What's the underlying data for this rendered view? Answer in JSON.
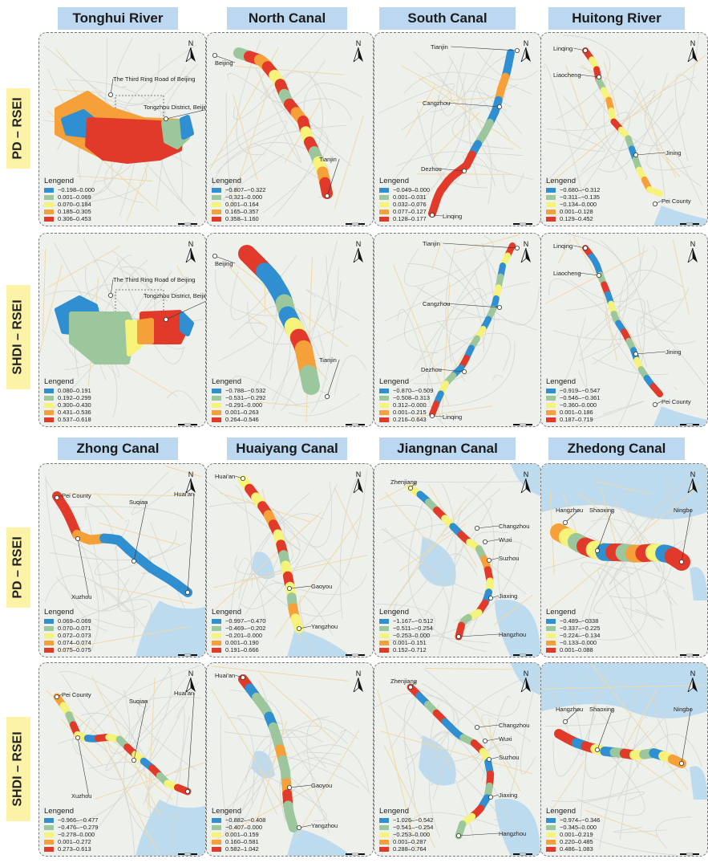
{
  "row_labels": [
    "PD – RSEI",
    "SHDI – RSEI",
    "PD – RSEI",
    "SHDI – RSEI"
  ],
  "legend_title": "Lengend",
  "north_label": "N",
  "colors": [
    "#2f8fd0",
    "#9cc79d",
    "#f5f37a",
    "#f6a03a",
    "#e23a2a"
  ],
  "titles": [
    "Tonghui River",
    "North Canal",
    "South Canal",
    "Huitong River",
    "Zhong Canal",
    "Huaiyang Canal",
    "Jiangnan Canal",
    "Zhedong Canal"
  ],
  "panels": [
    {
      "canal": "Tonghui River",
      "index": "PD – RSEI",
      "legend": [
        "−0.198–0.000",
        "0.001–0.069",
        "0.070–0.184",
        "0.185–0.305",
        "0.306–0.453"
      ],
      "labels": [
        "The Third Ring Road of Beijing",
        "Tongzhou District, Beijing"
      ]
    },
    {
      "canal": "North Canal",
      "index": "PD – RSEI",
      "legend": [
        "−0.807–−0.322",
        "−0.321–0.000",
        "0.001–0.164",
        "0.165–0.357",
        "0.358–1.160"
      ],
      "labels": [
        "Beijing",
        "Tianjin"
      ]
    },
    {
      "canal": "South Canal",
      "index": "PD – RSEI",
      "legend": [
        "−0.049–0.000",
        "0.001–0.031",
        "0.032–0.076",
        "0.077–0.127",
        "0.128–0.177"
      ],
      "labels": [
        "Tianjin",
        "Cangzhou",
        "Dezhou",
        "Linqing"
      ]
    },
    {
      "canal": "Huitong River",
      "index": "PD – RSEI",
      "legend": [
        "−0.680–−0.312",
        "−0.311–−0.135",
        "−0.134–0.000",
        "0.001–0.128",
        "0.129–0.452"
      ],
      "labels": [
        "Linqing",
        "Liaocheng",
        "Jining",
        "Pei County"
      ]
    },
    {
      "canal": "Tonghui River",
      "index": "SHDI – RSEI",
      "legend": [
        "0.080–0.191",
        "0.192–0.299",
        "0.300–0.430",
        "0.431–0.536",
        "0.537–0.618"
      ],
      "labels": [
        "The Third Ring Road of Beijing",
        "Tongzhou District, Beijing"
      ]
    },
    {
      "canal": "North Canal",
      "index": "SHDI – RSEI",
      "legend": [
        "−0.788–−0.532",
        "−0.531–−0.292",
        "−0.291–0.000",
        "0.001–0.263",
        "0.264–0.546"
      ],
      "labels": [
        "Beijing",
        "Tianjin"
      ]
    },
    {
      "canal": "South Canal",
      "index": "SHDI – RSEI",
      "legend": [
        "−0.870–−0.509",
        "−0.508–0.313",
        "0.312–0.000",
        "0.001–0.215",
        "0.216–0.643"
      ],
      "labels": [
        "Tianjin",
        "Cangzhou",
        "Dezhou",
        "Linqing"
      ]
    },
    {
      "canal": "Huitong River",
      "index": "SHDI – RSEI",
      "legend": [
        "−0.919–−0.547",
        "−0.546–−0.361",
        "−0.360–0.000",
        "0.001–0.186",
        "0.187–0.719"
      ],
      "labels": [
        "Linqing",
        "Liaocheng",
        "Jining",
        "Pei County"
      ]
    },
    {
      "canal": "Zhong Canal",
      "index": "PD – RSEI",
      "legend": [
        "0.069–0.069",
        "0.070–0.071",
        "0.072–0.073",
        "0.074–0.074",
        "0.075–0.075"
      ],
      "labels": [
        "Pei County",
        "Suqian",
        "Huai'an",
        "Xuzhou"
      ]
    },
    {
      "canal": "Huaiyang Canal",
      "index": "PD – RSEI",
      "legend": [
        "−0.997–−0.470",
        "−0.469–−0.202",
        "−0.201–0.000",
        "0.001–0.190",
        "0.191–0.666"
      ],
      "labels": [
        "Huai'an",
        "Gaoyou",
        "Yangzhou"
      ]
    },
    {
      "canal": "Jiangnan Canal",
      "index": "PD – RSEI",
      "legend": [
        "−1.167–−0.512",
        "−0.511–−0.254",
        "−0.253–0.000",
        "0.001–0.151",
        "0.152–0.712"
      ],
      "labels": [
        "Zhenjiang",
        "Changzhou",
        "Wuxi",
        "Suzhou",
        "Jiaxing",
        "Hangzhou"
      ]
    },
    {
      "canal": "Zhedong Canal",
      "index": "PD – RSEI",
      "legend": [
        "−0.489–−0338",
        "−0.337–−0.225",
        "−0.224–−0.134",
        "−0.133–0.000",
        "0.001–0.088"
      ],
      "labels": [
        "Hangzhou",
        "Shaoxing",
        "Ningbo"
      ]
    },
    {
      "canal": "Zhong Canal",
      "index": "SHDI – RSEI",
      "legend": [
        "−0.966–−0.477",
        "−0.476–−0.279",
        "−0.278–0.000",
        "0.001–0.272",
        "0.273–0.613"
      ],
      "labels": [
        "Pei County",
        "Suqian",
        "Huai'an",
        "Xuzhou"
      ]
    },
    {
      "canal": "Huaiyang Canal",
      "index": "SHDI – RSEI",
      "legend": [
        "−0.882–−0.408",
        "−0.407–0.000",
        "0.001–0.159",
        "0.160–0.581",
        "0.582–1.042"
      ],
      "labels": [
        "Huai'an",
        "Gaoyou",
        "Yangzhou"
      ]
    },
    {
      "canal": "Jiangnan Canal",
      "index": "SHDI – RSEI",
      "legend": [
        "−1.026–−0.542",
        "−0.541–−0.254",
        "−0.253–0.000",
        "0.001–0.287",
        "0.288–0.764"
      ],
      "labels": [
        "Zhenjiang",
        "Changzhou",
        "Wuxi",
        "Suzhou",
        "Jiaxing",
        "Hangzhou"
      ]
    },
    {
      "canal": "Zhedong Canal",
      "index": "SHDI – RSEI",
      "legend": [
        "−0.974–−0.346",
        "−0.345–0.000",
        "0.001–0.219",
        "0.220–0.485",
        "0.486–1.083"
      ],
      "labels": [
        "Hangzhou",
        "Shaoxing",
        "Ningbo"
      ]
    }
  ]
}
